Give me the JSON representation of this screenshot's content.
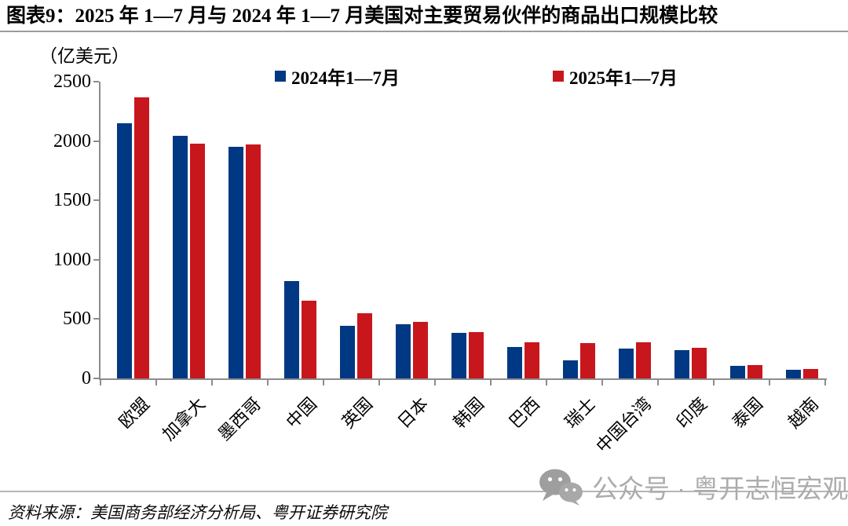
{
  "title": {
    "prefix": "图表9：",
    "text": "2025 年 1—7 月与 2024 年 1—7 月美国对主要贸易伙伴的商品出口规模比较"
  },
  "unit_label": "（亿美元）",
  "watermark": {
    "icon": "wechat-icon",
    "text": "公众号 · 粤开志恒宏观"
  },
  "source": "资料来源：美国商务部经济分析局、粤开证券研究院",
  "colors": {
    "series_2024": "#003883",
    "series_2025": "#c8161d",
    "axis": "#8c8c8c",
    "watermark": "#acacac",
    "divider": "#b5b5b5"
  },
  "chart_data": {
    "type": "bar",
    "title": "2025年1—7月与2024年1—7月美国对主要贸易伙伴的商品出口规模比较",
    "ylabel": "亿美元",
    "xlabel": "",
    "categories": [
      "欧盟",
      "加拿大",
      "墨西哥",
      "中国",
      "英国",
      "日本",
      "韩国",
      "巴西",
      "瑞士",
      "中国台湾",
      "印度",
      "泰国",
      "越南"
    ],
    "series": [
      {
        "name": "2024年1—7月",
        "color": "#003883",
        "values": [
          2150,
          2045,
          1950,
          820,
          445,
          455,
          385,
          265,
          155,
          250,
          240,
          105,
          70
        ]
      },
      {
        "name": "2025年1—7月",
        "color": "#c8161d",
        "values": [
          2370,
          1980,
          1970,
          655,
          550,
          475,
          390,
          305,
          300,
          305,
          255,
          110,
          80
        ]
      }
    ],
    "ylim": [
      0,
      2500
    ],
    "yticks": [
      0,
      500,
      1000,
      1500,
      2000,
      2500
    ],
    "grid": false,
    "legend_position": "top"
  }
}
